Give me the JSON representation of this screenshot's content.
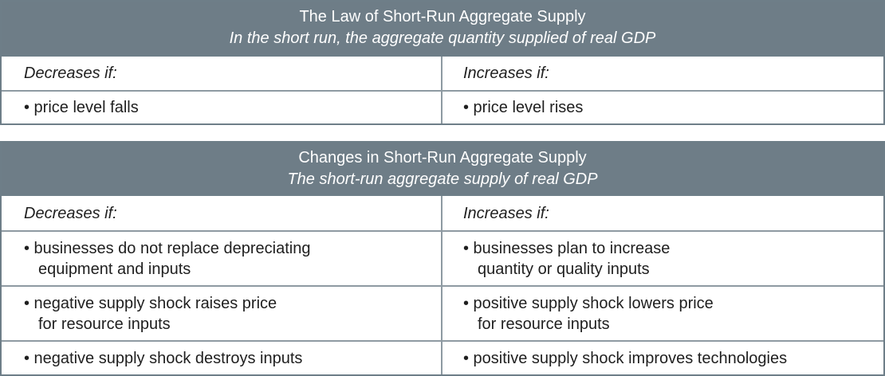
{
  "law_table": {
    "title": "The Law of Short-Run Aggregate Supply",
    "subtitle": "In the short run, the aggregate quantity supplied of real GDP",
    "left_header": "Decreases if:",
    "right_header": "Increases if:",
    "rows": [
      {
        "left": "• price level falls",
        "right": "• price level rises"
      }
    ]
  },
  "changes_table": {
    "title": "Changes in Short-Run Aggregate Supply",
    "subtitle": "The short-run aggregate supply of real GDP",
    "left_header": "Decreases if:",
    "right_header": "Increases if:",
    "rows": [
      {
        "left_1": "• businesses do not replace depreciating",
        "left_2": "equipment and inputs",
        "right_1": "• businesses plan to increase",
        "right_2": "quantity or quality inputs"
      },
      {
        "left_1": "• negative supply shock raises price",
        "left_2": "for resource inputs",
        "right_1": "• positive supply shock lowers price",
        "right_2": "for resource inputs"
      },
      {
        "left_1": "• negative supply shock destroys inputs",
        "right_1": "• positive supply shock improves technologies"
      }
    ]
  },
  "colors": {
    "header_bg": "#6e7d87",
    "border": "#6e7e88",
    "text": "#1f1f1f"
  }
}
